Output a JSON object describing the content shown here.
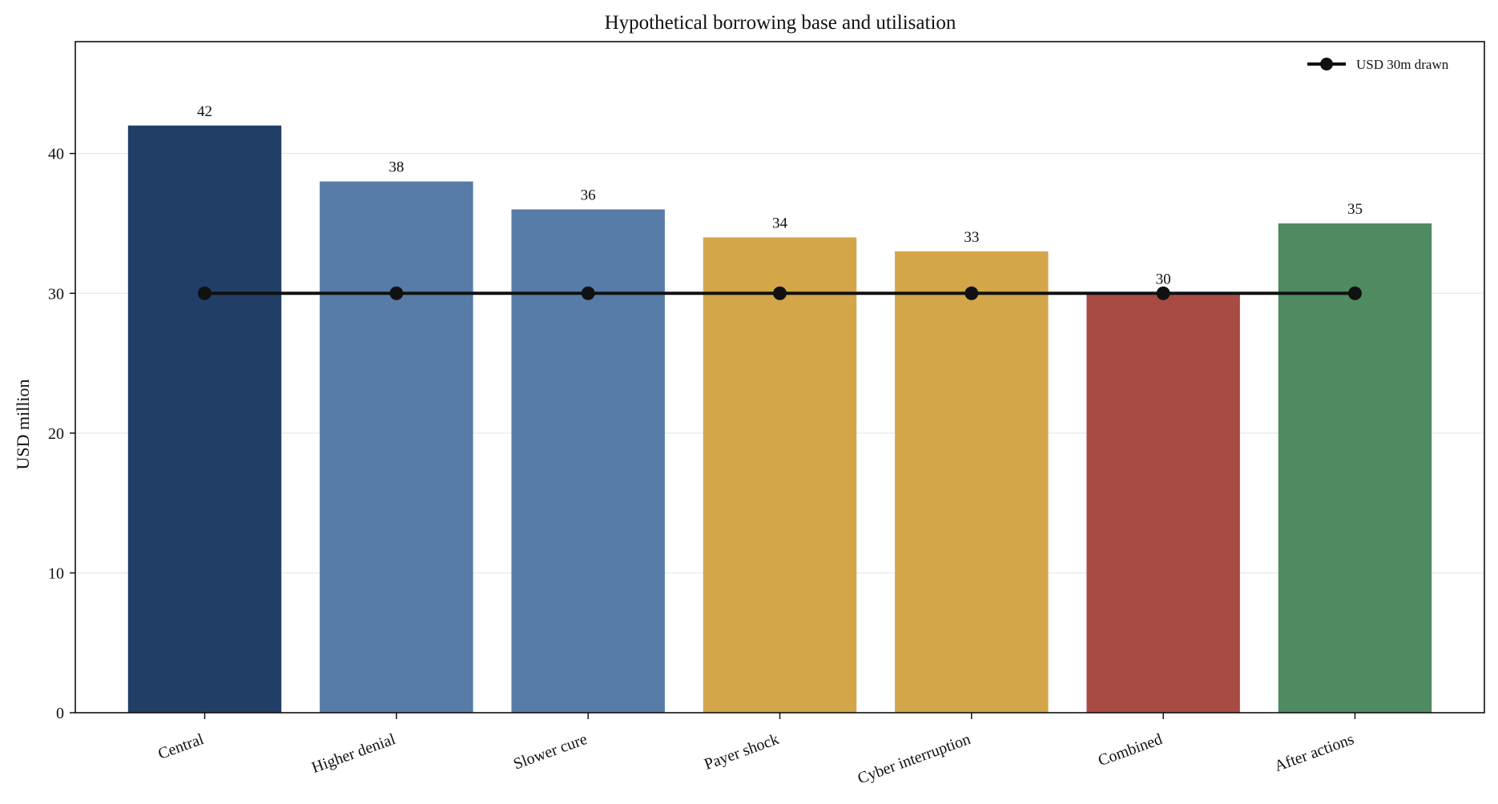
{
  "chart_data": {
    "type": "bar",
    "title": "Hypothetical borrowing base and utilisation",
    "xlabel": "",
    "ylabel": "USD million",
    "ylim": [
      0,
      48
    ],
    "yticks": [
      0,
      10,
      20,
      30,
      40
    ],
    "grid": "horizontal",
    "legend_position": "top-right",
    "categories": [
      "Central",
      "Higher denial",
      "Slower cure",
      "Payer shock",
      "Cyber interruption",
      "Combined",
      "After actions"
    ],
    "values": [
      42,
      38,
      36,
      34,
      33,
      30,
      35
    ],
    "bar_colors": [
      "#213f66",
      "#577ca8",
      "#577ca8",
      "#d4a64a",
      "#d4a64a",
      "#a84b45",
      "#4f8a60"
    ],
    "line_series": {
      "name": "USD 30m drawn",
      "values": [
        30,
        30,
        30,
        30,
        30,
        30,
        30
      ],
      "color": "#111111"
    }
  }
}
